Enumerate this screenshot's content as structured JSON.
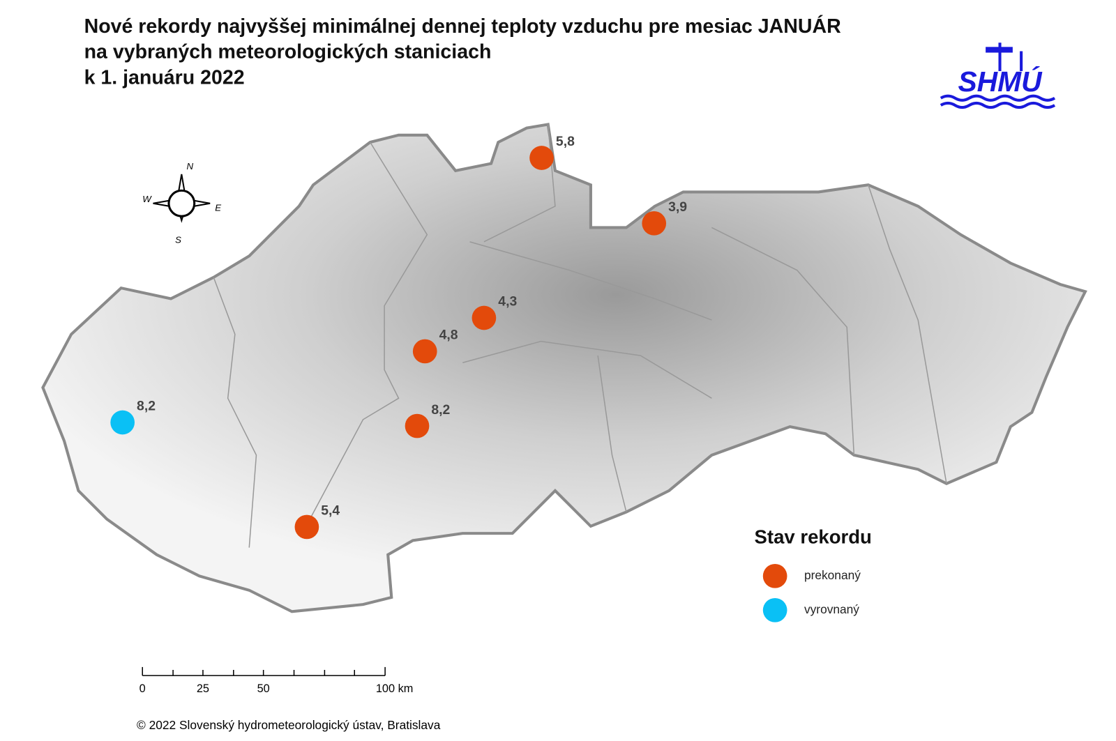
{
  "header": {
    "title_lines": [
      "Nové rekordy najvyššej minimálnej dennej teploty vzduchu pre mesiac JANUÁR",
      "na vybraných meteorologických staniciach",
      "k 1. januáru 2022"
    ],
    "logo": "SHMÚ"
  },
  "compass": {
    "n": "N",
    "w": "W",
    "e": "E",
    "s": "S"
  },
  "legend": {
    "title": "Stav rekordu",
    "items": [
      {
        "label": "prekonaný",
        "color": "#e34a0b",
        "stations": [
          "5,8",
          "3,9",
          "4,3",
          "4,8",
          "8,2",
          "5,4"
        ]
      },
      {
        "label": "vyrovnaný",
        "color": "#0ac0f5",
        "stations": [
          "8,2"
        ]
      }
    ]
  },
  "scale_bar": {
    "labels": [
      "0",
      "25",
      "50",
      "100 km"
    ]
  },
  "footer": {
    "copyright": "© 2022 Slovenský hydrometeorologický ústav, Bratislava"
  }
}
